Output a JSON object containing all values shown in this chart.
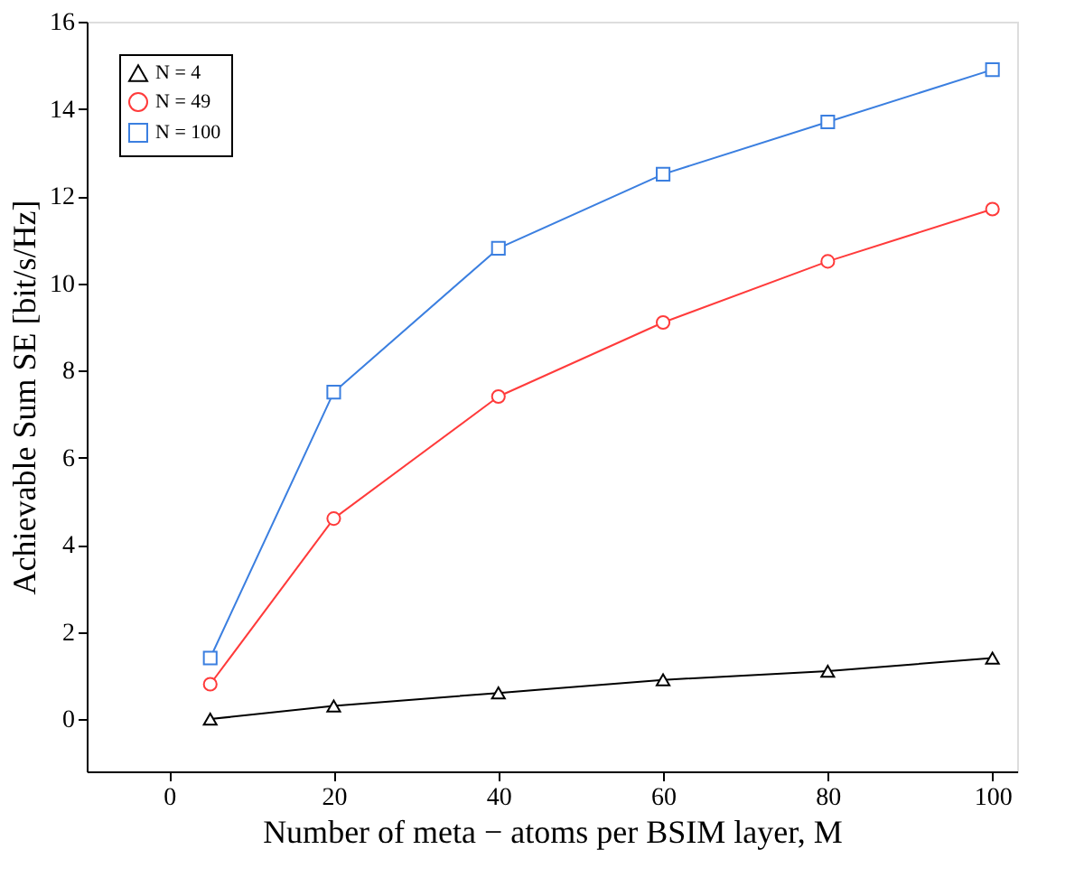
{
  "chart_data": {
    "type": "line",
    "xlabel": "Number of meta − atoms per BSIM layer, M",
    "ylabel": "Achievable Sum SE [bit/s/Hz]",
    "x": [
      5,
      20,
      40,
      60,
      80,
      100
    ],
    "series": [
      {
        "name": "N = 4",
        "color": "#000000",
        "marker": "triangle",
        "values": [
          0.0,
          0.3,
          0.6,
          0.9,
          1.1,
          1.4
        ]
      },
      {
        "name": "N = 49",
        "color": "#ff3b3b",
        "marker": "circle",
        "values": [
          0.8,
          4.6,
          7.4,
          9.1,
          10.5,
          11.7
        ]
      },
      {
        "name": "N = 100",
        "color": "#3b7fe0",
        "marker": "square",
        "values": [
          1.4,
          7.5,
          10.8,
          12.5,
          13.7,
          14.9
        ]
      }
    ],
    "xlim": [
      -10,
      103
    ],
    "ylim": [
      -1.2,
      16
    ],
    "xticks": [
      0,
      20,
      40,
      60,
      80,
      100
    ],
    "yticks": [
      0,
      2,
      4,
      6,
      8,
      10,
      12,
      14,
      16
    ],
    "grid": false,
    "legend": "top left",
    "line_style": "solid"
  }
}
